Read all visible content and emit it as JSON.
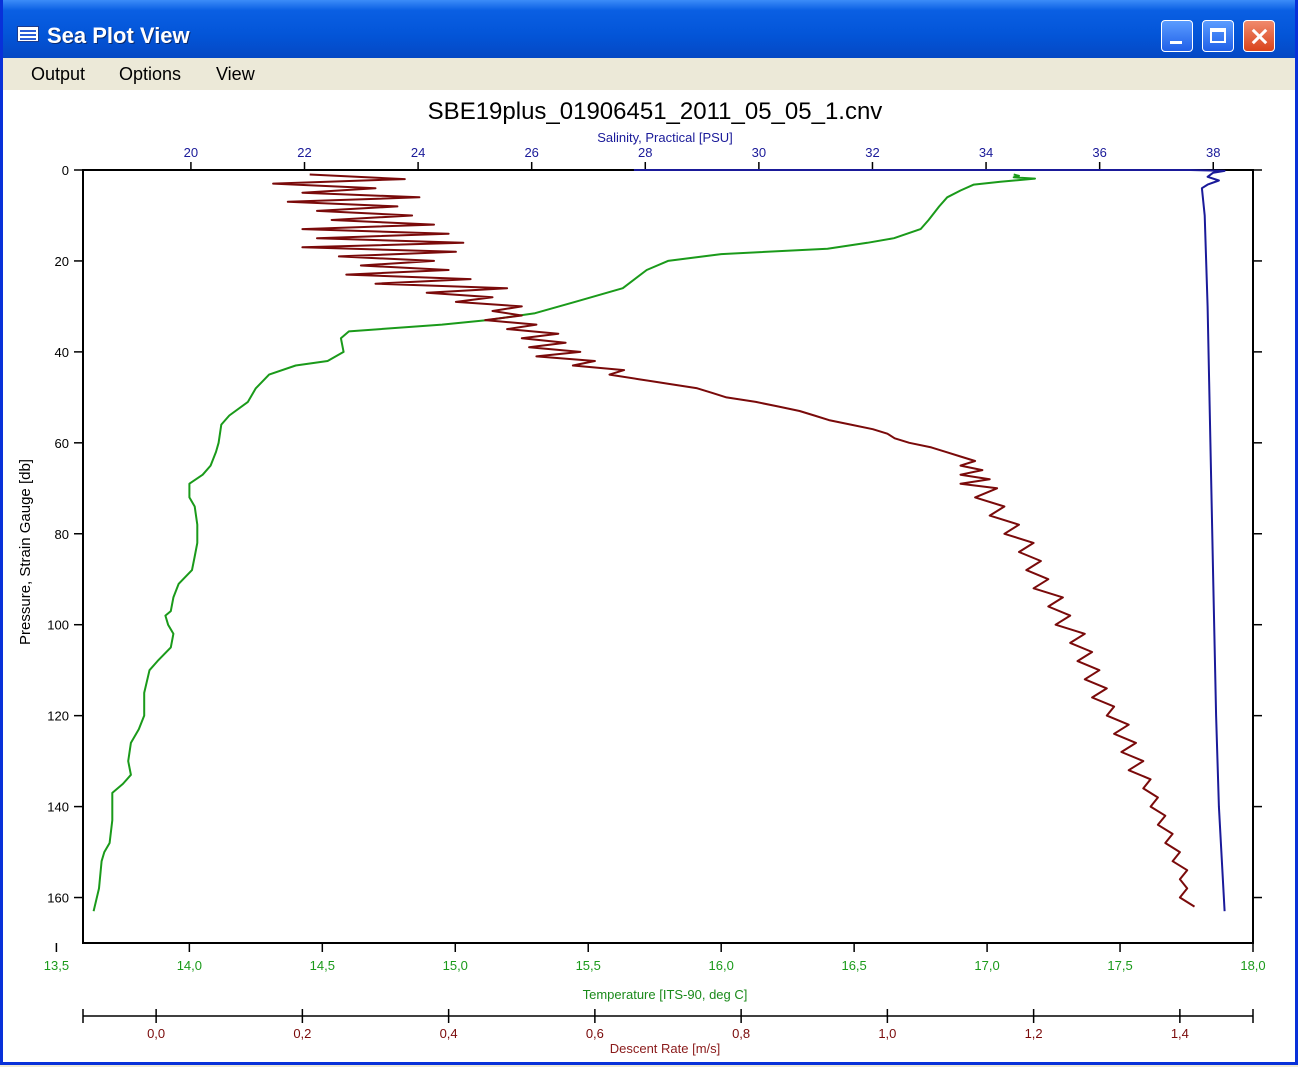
{
  "window": {
    "title": "Sea Plot View"
  },
  "menu": {
    "output": "Output",
    "options": "Options",
    "view": "View"
  },
  "colors": {
    "salinity": "#1a1a99",
    "temperature": "#1a9a1a",
    "descent_rate": "#7a0a0a",
    "titlebar": "#0355D8"
  },
  "icons": [
    "app-icon",
    "minimize-icon",
    "maximize-icon",
    "close-icon"
  ],
  "chart_data": {
    "type": "line",
    "title": "SBE19plus_01906451_2011_05_05_1.cnv",
    "y_axis": {
      "label": "Pressure, Strain Gauge [db]",
      "range": [
        0,
        170
      ],
      "inverted": true,
      "ticks": [
        "0",
        "20",
        "40",
        "60",
        "80",
        "100",
        "120",
        "140",
        "160"
      ],
      "tick_values": [
        0,
        20,
        40,
        60,
        80,
        100,
        120,
        140,
        160
      ]
    },
    "x_axes": {
      "salinity": {
        "label": "Salinity, Practical [PSU]",
        "position": "top",
        "range": [
          18.1,
          38.7
        ],
        "ticks": [
          "20",
          "22",
          "24",
          "26",
          "28",
          "30",
          "32",
          "34",
          "36",
          "38"
        ],
        "tick_values": [
          20,
          22,
          24,
          26,
          28,
          30,
          32,
          34,
          36,
          38
        ]
      },
      "temperature": {
        "label": "Temperature [ITS-90, deg C]",
        "position": "bottom",
        "range": [
          13.6,
          18.0
        ],
        "ticks": [
          "13,5",
          "14,0",
          "14,5",
          "15,0",
          "15,5",
          "16,0",
          "16,5",
          "17,0",
          "17,5",
          "18,0"
        ],
        "tick_values": [
          13.5,
          14.0,
          14.5,
          15.0,
          15.5,
          16.0,
          16.5,
          17.0,
          17.5,
          18.0
        ]
      },
      "descent_rate": {
        "label": "Descent Rate [m/s]",
        "position": "bottom",
        "range": [
          -0.1,
          1.5
        ],
        "ticks": [
          "0,0",
          "0,2",
          "0,4",
          "0,6",
          "0,8",
          "1,0",
          "1,2",
          "1,4"
        ],
        "tick_values": [
          0.0,
          0.2,
          0.4,
          0.6,
          0.8,
          1.0,
          1.2,
          1.4
        ]
      }
    },
    "series": [
      {
        "name": "Salinity, Practical [PSU]",
        "axis": "salinity",
        "points": [
          [
            27.8,
            0
          ],
          [
            37.6,
            0
          ],
          [
            38.2,
            0.2
          ],
          [
            38.0,
            0.6
          ],
          [
            37.9,
            1.5
          ],
          [
            38.1,
            2.3
          ],
          [
            37.9,
            3.2
          ],
          [
            37.8,
            4
          ],
          [
            37.85,
            10
          ],
          [
            37.9,
            30
          ],
          [
            37.95,
            60
          ],
          [
            38.0,
            90
          ],
          [
            38.05,
            120
          ],
          [
            38.1,
            140
          ],
          [
            38.2,
            163
          ]
        ]
      },
      {
        "name": "Temperature [ITS-90, deg C]",
        "axis": "temperature",
        "points": [
          [
            17.1,
            1
          ],
          [
            17.12,
            1.3
          ],
          [
            17.1,
            1.6
          ],
          [
            17.18,
            1.9
          ],
          [
            17.05,
            2.6
          ],
          [
            16.95,
            3.2
          ],
          [
            16.9,
            4.5
          ],
          [
            16.85,
            6
          ],
          [
            16.82,
            8
          ],
          [
            16.78,
            11
          ],
          [
            16.75,
            13
          ],
          [
            16.65,
            15
          ],
          [
            16.55,
            16
          ],
          [
            16.4,
            17.3
          ],
          [
            16.0,
            18.5
          ],
          [
            15.8,
            20
          ],
          [
            15.72,
            22
          ],
          [
            15.63,
            26
          ],
          [
            15.45,
            29
          ],
          [
            15.3,
            31.5
          ],
          [
            15.12,
            33
          ],
          [
            14.95,
            34
          ],
          [
            14.6,
            35.5
          ],
          [
            14.57,
            37
          ],
          [
            14.58,
            40
          ],
          [
            14.52,
            42
          ],
          [
            14.4,
            43
          ],
          [
            14.3,
            45
          ],
          [
            14.25,
            48
          ],
          [
            14.22,
            51
          ],
          [
            14.15,
            54
          ],
          [
            14.12,
            56
          ],
          [
            14.11,
            60
          ],
          [
            14.1,
            62
          ],
          [
            14.08,
            65
          ],
          [
            14.05,
            67
          ],
          [
            14.0,
            69
          ],
          [
            14.0,
            72
          ],
          [
            14.02,
            74
          ],
          [
            14.03,
            78
          ],
          [
            14.03,
            82
          ],
          [
            14.02,
            85
          ],
          [
            14.01,
            88
          ],
          [
            13.96,
            91
          ],
          [
            13.94,
            94
          ],
          [
            13.93,
            97
          ],
          [
            13.91,
            98
          ],
          [
            13.92,
            100
          ],
          [
            13.94,
            102
          ],
          [
            13.93,
            105
          ],
          [
            13.88,
            108
          ],
          [
            13.85,
            110
          ],
          [
            13.83,
            115
          ],
          [
            13.83,
            120
          ],
          [
            13.81,
            123
          ],
          [
            13.78,
            126
          ],
          [
            13.77,
            130
          ],
          [
            13.78,
            133
          ],
          [
            13.75,
            135
          ],
          [
            13.71,
            137
          ],
          [
            13.71,
            143
          ],
          [
            13.7,
            148
          ],
          [
            13.68,
            150
          ],
          [
            13.67,
            152
          ],
          [
            13.66,
            158
          ],
          [
            13.64,
            163
          ]
        ]
      },
      {
        "name": "Descent Rate [m/s]",
        "axis": "descent_rate",
        "points": [
          [
            0.21,
            1
          ],
          [
            0.34,
            2
          ],
          [
            0.16,
            3
          ],
          [
            0.3,
            4
          ],
          [
            0.2,
            5
          ],
          [
            0.36,
            6
          ],
          [
            0.18,
            7
          ],
          [
            0.33,
            8
          ],
          [
            0.22,
            9
          ],
          [
            0.35,
            10
          ],
          [
            0.24,
            11
          ],
          [
            0.38,
            12
          ],
          [
            0.2,
            13
          ],
          [
            0.4,
            14
          ],
          [
            0.22,
            15
          ],
          [
            0.42,
            16
          ],
          [
            0.2,
            17
          ],
          [
            0.41,
            18
          ],
          [
            0.25,
            19
          ],
          [
            0.38,
            20
          ],
          [
            0.28,
            21
          ],
          [
            0.4,
            22
          ],
          [
            0.26,
            23
          ],
          [
            0.43,
            24
          ],
          [
            0.3,
            25
          ],
          [
            0.48,
            26
          ],
          [
            0.37,
            27
          ],
          [
            0.46,
            28
          ],
          [
            0.41,
            29
          ],
          [
            0.5,
            30
          ],
          [
            0.46,
            31
          ],
          [
            0.5,
            32
          ],
          [
            0.45,
            33
          ],
          [
            0.52,
            34
          ],
          [
            0.48,
            35
          ],
          [
            0.55,
            36
          ],
          [
            0.5,
            37
          ],
          [
            0.56,
            38
          ],
          [
            0.51,
            39
          ],
          [
            0.58,
            40
          ],
          [
            0.52,
            41
          ],
          [
            0.6,
            42
          ],
          [
            0.57,
            43
          ],
          [
            0.64,
            44
          ],
          [
            0.62,
            45
          ],
          [
            0.66,
            46
          ],
          [
            0.7,
            47
          ],
          [
            0.74,
            48
          ],
          [
            0.76,
            49
          ],
          [
            0.78,
            50
          ],
          [
            0.82,
            51
          ],
          [
            0.85,
            52
          ],
          [
            0.88,
            53
          ],
          [
            0.9,
            54
          ],
          [
            0.92,
            55
          ],
          [
            0.95,
            56
          ],
          [
            0.98,
            57
          ],
          [
            1.0,
            58
          ],
          [
            1.01,
            59
          ],
          [
            1.03,
            60
          ],
          [
            1.06,
            61
          ],
          [
            1.08,
            62
          ],
          [
            1.1,
            63
          ],
          [
            1.12,
            64
          ],
          [
            1.1,
            65
          ],
          [
            1.13,
            66
          ],
          [
            1.1,
            67
          ],
          [
            1.14,
            68
          ],
          [
            1.1,
            69
          ],
          [
            1.15,
            70
          ],
          [
            1.12,
            72
          ],
          [
            1.16,
            74
          ],
          [
            1.14,
            76
          ],
          [
            1.18,
            78
          ],
          [
            1.16,
            80
          ],
          [
            1.2,
            82
          ],
          [
            1.18,
            84
          ],
          [
            1.21,
            86
          ],
          [
            1.19,
            88
          ],
          [
            1.22,
            90
          ],
          [
            1.2,
            92
          ],
          [
            1.24,
            94
          ],
          [
            1.22,
            96
          ],
          [
            1.25,
            98
          ],
          [
            1.23,
            100
          ],
          [
            1.27,
            102
          ],
          [
            1.25,
            104
          ],
          [
            1.28,
            106
          ],
          [
            1.26,
            108
          ],
          [
            1.29,
            110
          ],
          [
            1.27,
            112
          ],
          [
            1.3,
            114
          ],
          [
            1.28,
            116
          ],
          [
            1.31,
            118
          ],
          [
            1.3,
            120
          ],
          [
            1.33,
            122
          ],
          [
            1.31,
            124
          ],
          [
            1.34,
            126
          ],
          [
            1.32,
            128
          ],
          [
            1.35,
            130
          ],
          [
            1.33,
            132
          ],
          [
            1.36,
            134
          ],
          [
            1.35,
            136
          ],
          [
            1.37,
            138
          ],
          [
            1.36,
            140
          ],
          [
            1.38,
            142
          ],
          [
            1.37,
            144
          ],
          [
            1.39,
            146
          ],
          [
            1.38,
            148
          ],
          [
            1.4,
            150
          ],
          [
            1.39,
            152
          ],
          [
            1.41,
            154
          ],
          [
            1.4,
            156
          ],
          [
            1.41,
            158
          ],
          [
            1.4,
            160
          ],
          [
            1.42,
            162
          ]
        ]
      }
    ],
    "grid": false,
    "legend": "none"
  }
}
